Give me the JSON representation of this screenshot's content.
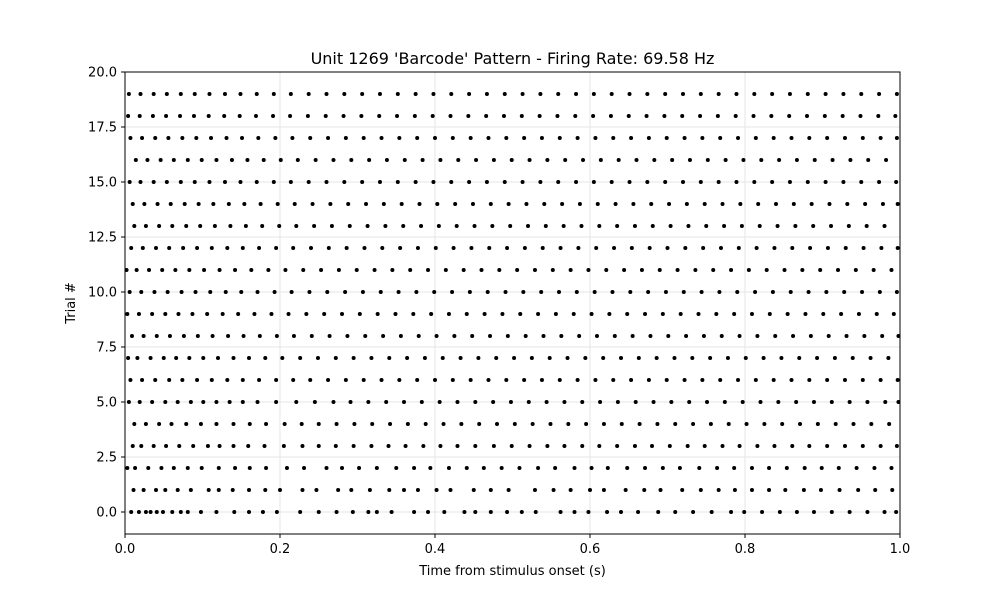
{
  "chart_data": {
    "type": "scatter",
    "title": "Unit 1269 'Barcode' Pattern - Firing Rate: 69.58 Hz",
    "xlabel": "Time from stimulus onset (s)",
    "ylabel": "Trial #",
    "xlim": [
      0.0,
      1.0
    ],
    "ylim": [
      -1.0,
      20.0
    ],
    "x_ticks": [
      0.0,
      0.2,
      0.4,
      0.6,
      0.8,
      1.0
    ],
    "x_tick_labels": [
      "0.0",
      "0.2",
      "0.4",
      "0.6",
      "0.8",
      "1.0"
    ],
    "y_ticks": [
      0.0,
      2.5,
      5.0,
      7.5,
      10.0,
      12.5,
      15.0,
      17.5,
      20.0
    ],
    "y_tick_labels": [
      "0.0",
      "2.5",
      "5.0",
      "7.5",
      "10.0",
      "12.5",
      "15.0",
      "17.5",
      "20.0"
    ],
    "grid": true,
    "marker_color": "#000000",
    "trials": [
      0,
      1,
      2,
      3,
      4,
      5,
      6,
      7,
      8,
      9,
      10,
      11,
      12,
      13,
      14,
      15,
      16,
      17,
      18,
      19
    ],
    "spike_times": [
      [
        0.008,
        0.018,
        0.027,
        0.033,
        0.041,
        0.049,
        0.061,
        0.072,
        0.081,
        0.098,
        0.118,
        0.141,
        0.16,
        0.178,
        0.196,
        0.226,
        0.25,
        0.273,
        0.294,
        0.314,
        0.325,
        0.344,
        0.373,
        0.391,
        0.412,
        0.438,
        0.452,
        0.472,
        0.493,
        0.512,
        0.53,
        0.562,
        0.58,
        0.598,
        0.622,
        0.64,
        0.662,
        0.688,
        0.71,
        0.733,
        0.757,
        0.782,
        0.799,
        0.822,
        0.845,
        0.867,
        0.889,
        0.912,
        0.935,
        0.958,
        0.98,
        0.995
      ],
      [
        0.011,
        0.024,
        0.04,
        0.052,
        0.068,
        0.085,
        0.108,
        0.121,
        0.139,
        0.16,
        0.181,
        0.2,
        0.229,
        0.247,
        0.275,
        0.292,
        0.316,
        0.341,
        0.36,
        0.378,
        0.402,
        0.42,
        0.45,
        0.472,
        0.495,
        0.529,
        0.553,
        0.575,
        0.6,
        0.618,
        0.646,
        0.67,
        0.691,
        0.719,
        0.743,
        0.766,
        0.787,
        0.809,
        0.831,
        0.852,
        0.876,
        0.898,
        0.922,
        0.946,
        0.968,
        0.99
      ],
      [
        0.003,
        0.013,
        0.03,
        0.047,
        0.063,
        0.081,
        0.099,
        0.121,
        0.142,
        0.161,
        0.182,
        0.209,
        0.231,
        0.26,
        0.28,
        0.302,
        0.325,
        0.35,
        0.373,
        0.394,
        0.418,
        0.441,
        0.463,
        0.486,
        0.509,
        0.533,
        0.555,
        0.58,
        0.602,
        0.623,
        0.648,
        0.671,
        0.694,
        0.716,
        0.741,
        0.764,
        0.786,
        0.809,
        0.831,
        0.854,
        0.877,
        0.899,
        0.921,
        0.944,
        0.967,
        0.989
      ],
      [
        0.01,
        0.021,
        0.037,
        0.053,
        0.07,
        0.088,
        0.107,
        0.122,
        0.14,
        0.159,
        0.18,
        0.205,
        0.229,
        0.25,
        0.272,
        0.295,
        0.318,
        0.34,
        0.362,
        0.385,
        0.407,
        0.429,
        0.452,
        0.476,
        0.499,
        0.522,
        0.545,
        0.567,
        0.59,
        0.612,
        0.635,
        0.658,
        0.68,
        0.703,
        0.726,
        0.748,
        0.771,
        0.793,
        0.816,
        0.838,
        0.861,
        0.883,
        0.906,
        0.929,
        0.952,
        0.975,
        0.996
      ],
      [
        0.012,
        0.027,
        0.044,
        0.06,
        0.079,
        0.098,
        0.118,
        0.14,
        0.161,
        0.182,
        0.206,
        0.228,
        0.25,
        0.273,
        0.296,
        0.319,
        0.342,
        0.365,
        0.388,
        0.411,
        0.434,
        0.457,
        0.48,
        0.503,
        0.526,
        0.549,
        0.572,
        0.595,
        0.618,
        0.641,
        0.664,
        0.687,
        0.71,
        0.733,
        0.756,
        0.779,
        0.802,
        0.825,
        0.848,
        0.871,
        0.894,
        0.917,
        0.94,
        0.963,
        0.986
      ],
      [
        0.005,
        0.019,
        0.035,
        0.052,
        0.068,
        0.085,
        0.101,
        0.118,
        0.135,
        0.152,
        0.171,
        0.195,
        0.221,
        0.245,
        0.269,
        0.291,
        0.314,
        0.337,
        0.36,
        0.383,
        0.406,
        0.429,
        0.452,
        0.475,
        0.498,
        0.521,
        0.544,
        0.567,
        0.59,
        0.613,
        0.636,
        0.659,
        0.682,
        0.705,
        0.728,
        0.751,
        0.774,
        0.797,
        0.82,
        0.843,
        0.866,
        0.889,
        0.912,
        0.935,
        0.958,
        0.981,
        0.998
      ],
      [
        0.007,
        0.022,
        0.039,
        0.057,
        0.074,
        0.093,
        0.112,
        0.132,
        0.152,
        0.173,
        0.195,
        0.217,
        0.239,
        0.262,
        0.285,
        0.308,
        0.331,
        0.354,
        0.377,
        0.4,
        0.423,
        0.446,
        0.469,
        0.492,
        0.515,
        0.538,
        0.561,
        0.584,
        0.607,
        0.63,
        0.653,
        0.676,
        0.699,
        0.722,
        0.745,
        0.768,
        0.791,
        0.814,
        0.837,
        0.86,
        0.883,
        0.906,
        0.929,
        0.952,
        0.975,
        0.997
      ],
      [
        0.004,
        0.016,
        0.033,
        0.05,
        0.066,
        0.083,
        0.101,
        0.12,
        0.14,
        0.16,
        0.181,
        0.203,
        0.226,
        0.249,
        0.272,
        0.295,
        0.318,
        0.341,
        0.364,
        0.387,
        0.41,
        0.433,
        0.456,
        0.479,
        0.502,
        0.525,
        0.548,
        0.571,
        0.594,
        0.617,
        0.64,
        0.663,
        0.686,
        0.709,
        0.732,
        0.755,
        0.778,
        0.801,
        0.824,
        0.847,
        0.87,
        0.893,
        0.916,
        0.939,
        0.962,
        0.985
      ],
      [
        0.009,
        0.024,
        0.041,
        0.058,
        0.076,
        0.094,
        0.113,
        0.133,
        0.153,
        0.174,
        0.196,
        0.218,
        0.241,
        0.264,
        0.287,
        0.31,
        0.333,
        0.356,
        0.379,
        0.402,
        0.425,
        0.448,
        0.471,
        0.494,
        0.517,
        0.54,
        0.563,
        0.586,
        0.609,
        0.632,
        0.655,
        0.678,
        0.701,
        0.724,
        0.747,
        0.77,
        0.793,
        0.816,
        0.839,
        0.862,
        0.885,
        0.908,
        0.931,
        0.954,
        0.977,
        0.998
      ],
      [
        0.003,
        0.018,
        0.035,
        0.052,
        0.069,
        0.087,
        0.106,
        0.126,
        0.146,
        0.167,
        0.189,
        0.211,
        0.234,
        0.257,
        0.28,
        0.303,
        0.326,
        0.349,
        0.372,
        0.395,
        0.418,
        0.441,
        0.464,
        0.487,
        0.51,
        0.533,
        0.556,
        0.579,
        0.602,
        0.625,
        0.648,
        0.671,
        0.694,
        0.717,
        0.74,
        0.763,
        0.786,
        0.809,
        0.832,
        0.855,
        0.878,
        0.901,
        0.924,
        0.947,
        0.97,
        0.992
      ],
      [
        0.006,
        0.021,
        0.038,
        0.055,
        0.073,
        0.091,
        0.11,
        0.13,
        0.15,
        0.171,
        0.193,
        0.215,
        0.238,
        0.261,
        0.284,
        0.307,
        0.33,
        0.353,
        0.376,
        0.399,
        0.422,
        0.445,
        0.468,
        0.491,
        0.514,
        0.537,
        0.56,
        0.583,
        0.606,
        0.629,
        0.652,
        0.675,
        0.698,
        0.721,
        0.744,
        0.767,
        0.79,
        0.813,
        0.836,
        0.859,
        0.882,
        0.905,
        0.928,
        0.951,
        0.974,
        0.996
      ],
      [
        0.002,
        0.015,
        0.031,
        0.048,
        0.065,
        0.083,
        0.102,
        0.122,
        0.142,
        0.163,
        0.185,
        0.207,
        0.23,
        0.253,
        0.276,
        0.299,
        0.322,
        0.345,
        0.368,
        0.391,
        0.414,
        0.437,
        0.46,
        0.483,
        0.506,
        0.529,
        0.552,
        0.575,
        0.598,
        0.621,
        0.644,
        0.667,
        0.69,
        0.713,
        0.736,
        0.759,
        0.782,
        0.805,
        0.828,
        0.851,
        0.874,
        0.897,
        0.92,
        0.943,
        0.966,
        0.989
      ],
      [
        0.008,
        0.023,
        0.04,
        0.057,
        0.075,
        0.093,
        0.112,
        0.132,
        0.152,
        0.173,
        0.195,
        0.217,
        0.24,
        0.263,
        0.286,
        0.309,
        0.332,
        0.355,
        0.378,
        0.401,
        0.424,
        0.447,
        0.47,
        0.493,
        0.516,
        0.539,
        0.562,
        0.585,
        0.608,
        0.631,
        0.654,
        0.677,
        0.7,
        0.723,
        0.746,
        0.769,
        0.792,
        0.815,
        0.838,
        0.861,
        0.884,
        0.907,
        0.93,
        0.953,
        0.976,
        0.997
      ],
      [
        0.012,
        0.027,
        0.044,
        0.061,
        0.079,
        0.097,
        0.116,
        0.136,
        0.156,
        0.177,
        0.199,
        0.221,
        0.244,
        0.267,
        0.29,
        0.313,
        0.336,
        0.359,
        0.382,
        0.405,
        0.428,
        0.451,
        0.474,
        0.497,
        0.52,
        0.543,
        0.566,
        0.589,
        0.612,
        0.635,
        0.658,
        0.681,
        0.704,
        0.727,
        0.75,
        0.773,
        0.796,
        0.819,
        0.842,
        0.865,
        0.888,
        0.911,
        0.934,
        0.957,
        0.98
      ],
      [
        0.01,
        0.025,
        0.042,
        0.059,
        0.077,
        0.095,
        0.114,
        0.134,
        0.154,
        0.175,
        0.197,
        0.219,
        0.242,
        0.265,
        0.288,
        0.311,
        0.334,
        0.357,
        0.38,
        0.403,
        0.426,
        0.449,
        0.472,
        0.495,
        0.518,
        0.541,
        0.564,
        0.587,
        0.61,
        0.633,
        0.656,
        0.679,
        0.702,
        0.725,
        0.748,
        0.771,
        0.794,
        0.817,
        0.84,
        0.863,
        0.886,
        0.909,
        0.932,
        0.955,
        0.978,
        0.997
      ],
      [
        0.006,
        0.02,
        0.037,
        0.054,
        0.072,
        0.09,
        0.109,
        0.129,
        0.149,
        0.17,
        0.192,
        0.214,
        0.237,
        0.26,
        0.283,
        0.306,
        0.329,
        0.352,
        0.375,
        0.398,
        0.421,
        0.444,
        0.467,
        0.49,
        0.513,
        0.536,
        0.559,
        0.582,
        0.605,
        0.628,
        0.651,
        0.674,
        0.697,
        0.72,
        0.743,
        0.766,
        0.789,
        0.812,
        0.835,
        0.858,
        0.881,
        0.904,
        0.927,
        0.95,
        0.973,
        0.995
      ],
      [
        0.014,
        0.029,
        0.046,
        0.063,
        0.081,
        0.099,
        0.118,
        0.138,
        0.158,
        0.179,
        0.201,
        0.223,
        0.246,
        0.269,
        0.292,
        0.315,
        0.338,
        0.361,
        0.384,
        0.407,
        0.43,
        0.453,
        0.476,
        0.499,
        0.522,
        0.545,
        0.568,
        0.591,
        0.614,
        0.637,
        0.66,
        0.683,
        0.706,
        0.729,
        0.752,
        0.775,
        0.798,
        0.821,
        0.844,
        0.867,
        0.89,
        0.913,
        0.936,
        0.959,
        0.982
      ],
      [
        0.007,
        0.022,
        0.039,
        0.056,
        0.074,
        0.092,
        0.111,
        0.131,
        0.151,
        0.172,
        0.194,
        0.216,
        0.239,
        0.262,
        0.285,
        0.308,
        0.331,
        0.354,
        0.377,
        0.4,
        0.423,
        0.446,
        0.469,
        0.492,
        0.515,
        0.538,
        0.561,
        0.584,
        0.607,
        0.63,
        0.653,
        0.676,
        0.699,
        0.722,
        0.745,
        0.768,
        0.791,
        0.814,
        0.837,
        0.86,
        0.883,
        0.906,
        0.929,
        0.952,
        0.975,
        0.996
      ],
      [
        0.004,
        0.019,
        0.036,
        0.053,
        0.071,
        0.089,
        0.108,
        0.128,
        0.148,
        0.169,
        0.191,
        0.213,
        0.236,
        0.259,
        0.282,
        0.305,
        0.328,
        0.351,
        0.374,
        0.397,
        0.42,
        0.443,
        0.466,
        0.489,
        0.512,
        0.535,
        0.558,
        0.581,
        0.604,
        0.627,
        0.65,
        0.673,
        0.696,
        0.719,
        0.742,
        0.765,
        0.788,
        0.811,
        0.834,
        0.857,
        0.88,
        0.903,
        0.926,
        0.949,
        0.972,
        0.994
      ],
      [
        0.005,
        0.02,
        0.037,
        0.054,
        0.072,
        0.09,
        0.109,
        0.129,
        0.149,
        0.17,
        0.192,
        0.214,
        0.237,
        0.26,
        0.283,
        0.306,
        0.329,
        0.352,
        0.375,
        0.398,
        0.421,
        0.444,
        0.467,
        0.49,
        0.513,
        0.536,
        0.559,
        0.582,
        0.605,
        0.628,
        0.651,
        0.674,
        0.697,
        0.72,
        0.743,
        0.766,
        0.789,
        0.812,
        0.835,
        0.858,
        0.881,
        0.904,
        0.927,
        0.95,
        0.973,
        0.996
      ]
    ]
  }
}
